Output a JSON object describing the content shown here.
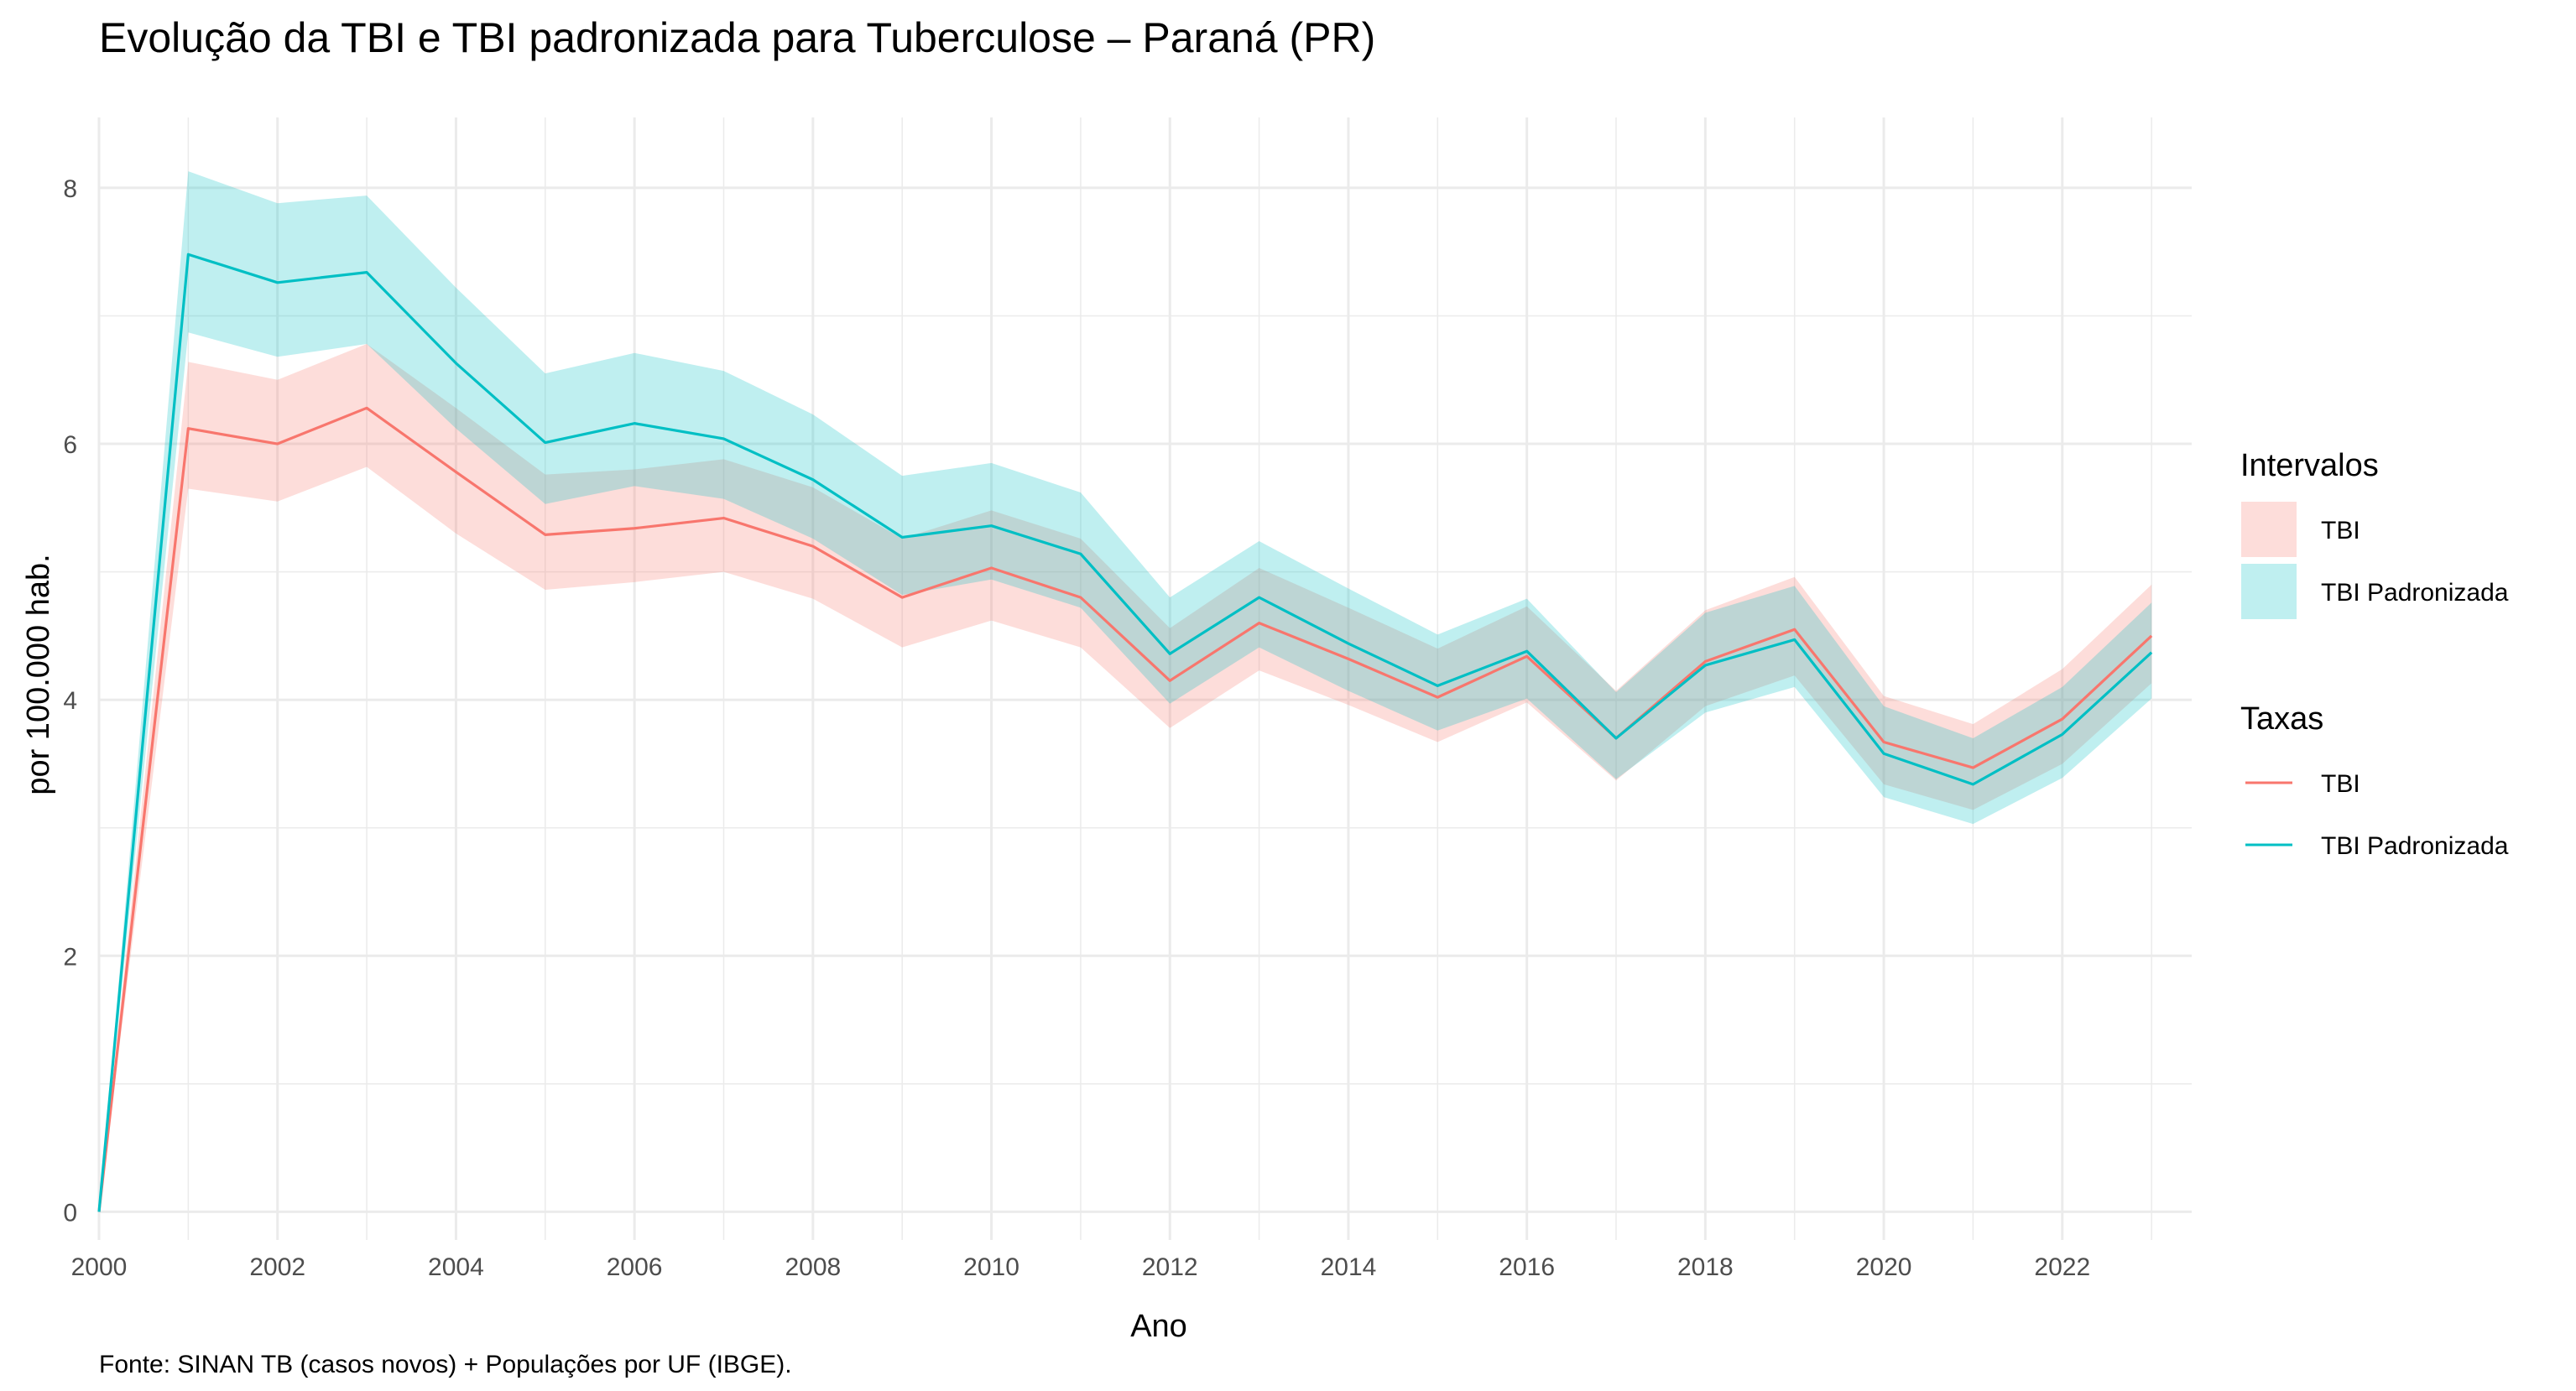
{
  "chart_data": {
    "type": "line",
    "title": "Evolução da TBI e TBI padronizada para Tuberculose – Paraná (PR)",
    "xlabel": "Ano",
    "ylabel": "por 100.000 hab.",
    "caption": "Fonte: SINAN TB (casos novos) + Populações por UF (IBGE).",
    "x": [
      2000,
      2001,
      2002,
      2003,
      2004,
      2005,
      2006,
      2007,
      2008,
      2009,
      2010,
      2011,
      2012,
      2013,
      2014,
      2015,
      2016,
      2017,
      2018,
      2019,
      2020,
      2021,
      2022,
      2023
    ],
    "xlim": [
      2000,
      2023.45
    ],
    "ylim": [
      -0.22,
      8.55
    ],
    "x_ticks": [
      2000,
      2002,
      2004,
      2006,
      2008,
      2010,
      2012,
      2014,
      2016,
      2018,
      2020,
      2022
    ],
    "x_tick_labels": [
      "2000",
      "2002",
      "2004",
      "2006",
      "2008",
      "2010",
      "2012",
      "2014",
      "2016",
      "2018",
      "2020",
      "2022"
    ],
    "y_ticks": [
      0,
      2,
      4,
      6,
      8
    ],
    "y_tick_labels": [
      "0",
      "2",
      "4",
      "6",
      "8"
    ],
    "grid": true,
    "legend_position": "right",
    "series": [
      {
        "name": "TBI",
        "color": "#F8766D",
        "values": [
          0.0,
          6.12,
          6.0,
          6.28,
          5.78,
          5.29,
          5.34,
          5.42,
          5.2,
          4.8,
          5.03,
          4.8,
          4.15,
          4.6,
          4.32,
          4.02,
          4.34,
          3.7,
          4.3,
          4.55,
          3.67,
          3.47,
          3.85,
          4.5
        ],
        "lower": [
          0.0,
          5.65,
          5.55,
          5.82,
          5.3,
          4.86,
          4.92,
          5.0,
          4.79,
          4.41,
          4.62,
          4.41,
          3.78,
          4.23,
          3.96,
          3.67,
          3.98,
          3.37,
          3.95,
          4.19,
          3.34,
          3.14,
          3.5,
          4.13
        ],
        "upper": [
          0.0,
          6.64,
          6.5,
          6.78,
          6.28,
          5.76,
          5.8,
          5.88,
          5.66,
          5.26,
          5.48,
          5.26,
          4.56,
          5.03,
          4.72,
          4.4,
          4.73,
          4.07,
          4.7,
          4.96,
          4.03,
          3.81,
          4.24,
          4.9
        ]
      },
      {
        "name": "TBI Padronizada",
        "color": "#00BFC4",
        "values": [
          0.0,
          7.48,
          7.26,
          7.34,
          6.63,
          6.01,
          6.16,
          6.04,
          5.72,
          5.27,
          5.36,
          5.14,
          4.36,
          4.8,
          4.44,
          4.11,
          4.38,
          3.7,
          4.27,
          4.47,
          3.58,
          3.34,
          3.73,
          4.37
        ],
        "lower": [
          0.0,
          6.87,
          6.68,
          6.78,
          6.12,
          5.53,
          5.67,
          5.57,
          5.26,
          4.82,
          4.94,
          4.72,
          3.97,
          4.41,
          4.07,
          3.76,
          4.01,
          3.38,
          3.9,
          4.1,
          3.24,
          3.03,
          3.39,
          4.01
        ],
        "upper": [
          0.0,
          8.13,
          7.88,
          7.94,
          7.22,
          6.55,
          6.71,
          6.57,
          6.23,
          5.75,
          5.85,
          5.62,
          4.8,
          5.24,
          4.87,
          4.51,
          4.79,
          4.06,
          4.68,
          4.89,
          3.95,
          3.7,
          4.1,
          4.76
        ]
      }
    ],
    "legend": {
      "intervals_title": "Intervalos",
      "rates_title": "Taxas",
      "items": [
        {
          "label": "TBI",
          "color": "#F8766D"
        },
        {
          "label": "TBI Padronizada",
          "color": "#00BFC4"
        }
      ]
    },
    "ribbon_opacity": 0.25
  }
}
